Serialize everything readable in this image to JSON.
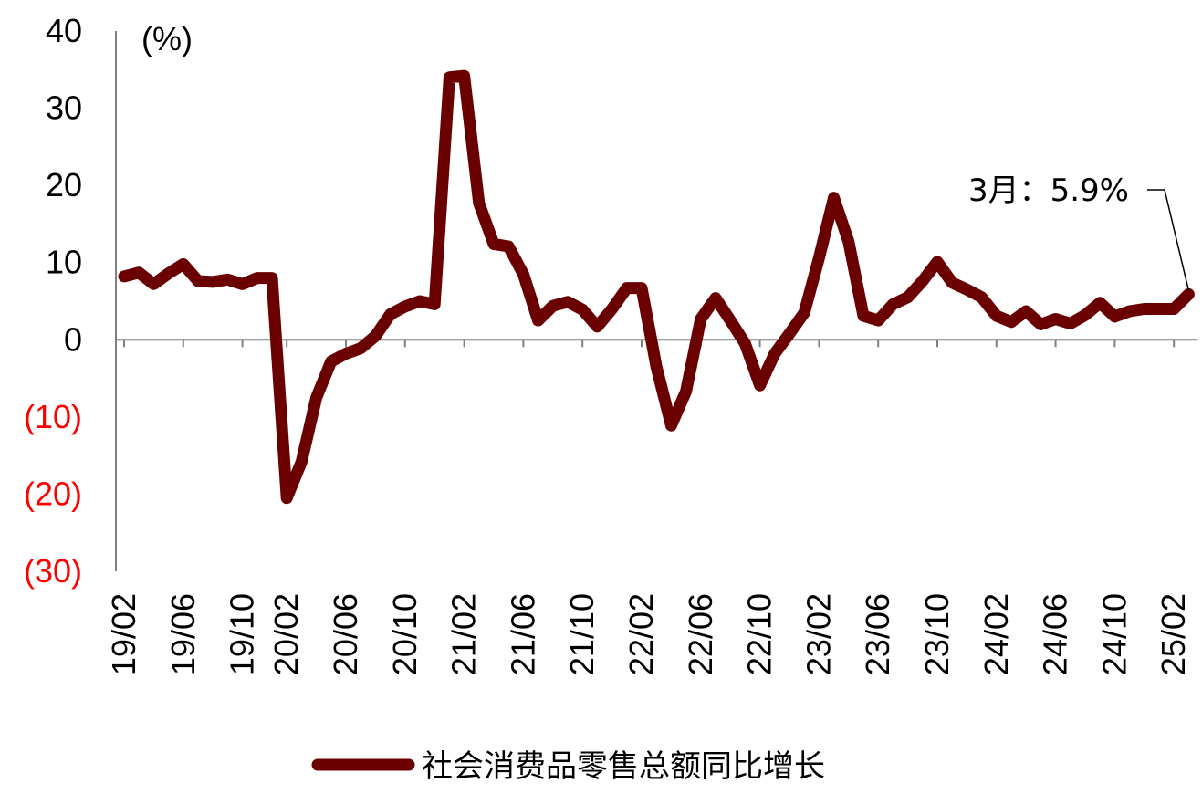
{
  "chart_data": {
    "type": "line",
    "unit_label": "(%)",
    "ylim": [
      -30,
      40
    ],
    "yticks": [
      40,
      30,
      20,
      10,
      0,
      -10,
      -20,
      -30
    ],
    "ytick_labels": [
      "40",
      "30",
      "20",
      "10",
      "0",
      "(10)",
      "(20)",
      "(30)"
    ],
    "x_tick_labels": [
      "19/02",
      "19/06",
      "19/10",
      "20/02",
      "20/06",
      "20/10",
      "21/02",
      "21/06",
      "21/10",
      "22/02",
      "22/06",
      "22/10",
      "23/02",
      "23/06",
      "23/10",
      "24/02",
      "24/06",
      "24/10",
      "25/02"
    ],
    "series": [
      {
        "name": "社会消费品零售总额同比增长",
        "color": "#6b0000",
        "x": [
          "19/02",
          "19/03",
          "19/04",
          "19/05",
          "19/06",
          "19/07",
          "19/08",
          "19/09",
          "19/10",
          "19/11",
          "19/12",
          "20/02",
          "20/03",
          "20/04",
          "20/05",
          "20/06",
          "20/07",
          "20/08",
          "20/09",
          "20/10",
          "20/11",
          "20/12",
          "21/01",
          "21/02",
          "21/03",
          "21/04",
          "21/05",
          "21/06",
          "21/07",
          "21/08",
          "21/09",
          "21/10",
          "21/11",
          "21/12",
          "22/01",
          "22/02",
          "22/03",
          "22/04",
          "22/05",
          "22/06",
          "22/07",
          "22/08",
          "22/09",
          "22/10",
          "22/11",
          "22/12",
          "23/01",
          "23/02",
          "23/03",
          "23/04",
          "23/05",
          "23/06",
          "23/07",
          "23/08",
          "23/09",
          "23/10",
          "23/11",
          "23/12",
          "24/01",
          "24/02",
          "24/03",
          "24/04",
          "24/05",
          "24/06",
          "24/07",
          "24/08",
          "24/09",
          "24/10",
          "24/11",
          "24/12",
          "25/01",
          "25/02",
          "25/03"
        ],
        "values": [
          8.2,
          8.7,
          7.2,
          8.6,
          9.8,
          7.6,
          7.5,
          7.8,
          7.2,
          8.0,
          8.0,
          -20.5,
          -15.8,
          -7.5,
          -2.8,
          -1.8,
          -1.1,
          0.5,
          3.3,
          4.3,
          5.0,
          4.6,
          34.0,
          34.2,
          17.7,
          12.4,
          12.1,
          8.5,
          2.5,
          4.4,
          4.9,
          3.9,
          1.7,
          4.0,
          6.7,
          6.7,
          -3.5,
          -11.1,
          -6.7,
          2.7,
          5.4,
          2.5,
          -0.5,
          -5.9,
          -1.8,
          0.8,
          3.5,
          10.6,
          18.4,
          12.7,
          3.1,
          2.5,
          4.6,
          5.5,
          7.6,
          10.1,
          7.4,
          6.5,
          5.5,
          3.1,
          2.3,
          3.7,
          2.0,
          2.7,
          2.1,
          3.2,
          4.8,
          3.0,
          3.7,
          4.0,
          4.0,
          4.0,
          5.9
        ]
      }
    ],
    "annotation": {
      "text": "3月：5.9%",
      "x": "25/03",
      "y": 5.9
    },
    "legend": {
      "position": "bottom-center",
      "label": "社会消费品零售总额同比增长"
    },
    "colors": {
      "line": "#6b0000",
      "negative_tick": "#ff0000",
      "axis": "#808080",
      "text": "#000000"
    }
  }
}
